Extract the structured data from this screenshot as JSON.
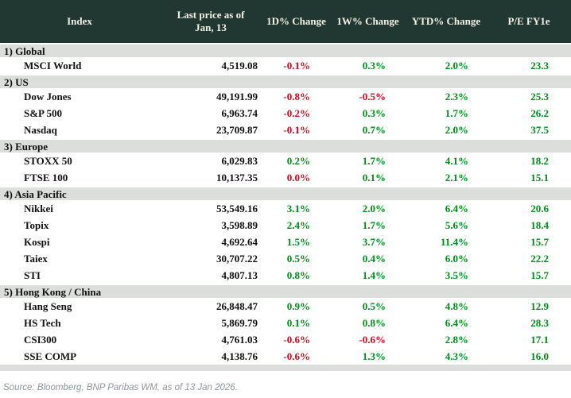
{
  "chart_data": {
    "type": "table",
    "columns": [
      "Index",
      "Last price as of Jan, 13",
      "1D% Change",
      "1W% Change",
      "YTD% Change",
      "P/E FY1e"
    ],
    "sections": [
      {
        "label": "1) Global",
        "rows": [
          {
            "name": "MSCI World",
            "price": "4,519.08",
            "d1": "-0.1%",
            "d1c": "down",
            "w1": "0.3%",
            "w1c": "up",
            "ytd": "2.0%",
            "ytdc": "up",
            "pe": "23.3"
          }
        ]
      },
      {
        "label": "2) US",
        "rows": [
          {
            "name": "Dow Jones",
            "price": "49,191.99",
            "d1": "-0.8%",
            "d1c": "down",
            "w1": "-0.5%",
            "w1c": "down",
            "ytd": "2.3%",
            "ytdc": "up",
            "pe": "25.3"
          },
          {
            "name": "S&P 500",
            "price": "6,963.74",
            "d1": "-0.2%",
            "d1c": "down",
            "w1": "0.3%",
            "w1c": "up",
            "ytd": "1.7%",
            "ytdc": "up",
            "pe": "26.2"
          },
          {
            "name": "Nasdaq",
            "price": "23,709.87",
            "d1": "-0.1%",
            "d1c": "down",
            "w1": "0.7%",
            "w1c": "up",
            "ytd": "2.0%",
            "ytdc": "up",
            "pe": "37.5"
          }
        ]
      },
      {
        "label": "3) Europe",
        "rows": [
          {
            "name": "STOXX 50",
            "price": "6,029.83",
            "d1": "0.2%",
            "d1c": "up",
            "w1": "1.7%",
            "w1c": "up",
            "ytd": "4.1%",
            "ytdc": "up",
            "pe": "18.2"
          },
          {
            "name": "FTSE 100",
            "price": "10,137.35",
            "d1": "0.0%",
            "d1c": "down",
            "w1": "0.1%",
            "w1c": "up",
            "ytd": "2.1%",
            "ytdc": "up",
            "pe": "15.1"
          }
        ]
      },
      {
        "label": "4) Asia Pacific",
        "rows": [
          {
            "name": "Nikkei",
            "price": "53,549.16",
            "d1": "3.1%",
            "d1c": "up",
            "w1": "2.0%",
            "w1c": "up",
            "ytd": "6.4%",
            "ytdc": "up",
            "pe": "20.6"
          },
          {
            "name": "Topix",
            "price": "3,598.89",
            "d1": "2.4%",
            "d1c": "up",
            "w1": "1.7%",
            "w1c": "up",
            "ytd": "5.6%",
            "ytdc": "up",
            "pe": "18.4"
          },
          {
            "name": "Kospi",
            "price": "4,692.64",
            "d1": "1.5%",
            "d1c": "up",
            "w1": "3.7%",
            "w1c": "up",
            "ytd": "11.4%",
            "ytdc": "up",
            "pe": "15.7"
          },
          {
            "name": "Taiex",
            "price": "30,707.22",
            "d1": "0.5%",
            "d1c": "up",
            "w1": "0.4%",
            "w1c": "up",
            "ytd": "6.0%",
            "ytdc": "up",
            "pe": "22.2"
          },
          {
            "name": "STI",
            "price": "4,807.13",
            "d1": "0.8%",
            "d1c": "up",
            "w1": "1.4%",
            "w1c": "up",
            "ytd": "3.5%",
            "ytdc": "up",
            "pe": "15.7"
          }
        ]
      },
      {
        "label": "5) Hong Kong / China",
        "rows": [
          {
            "name": "Hang Seng",
            "price": "26,848.47",
            "d1": "0.9%",
            "d1c": "up",
            "w1": "0.5%",
            "w1c": "up",
            "ytd": "4.8%",
            "ytdc": "up",
            "pe": "12.9"
          },
          {
            "name": "HS Tech",
            "price": "5,869.79",
            "d1": "0.1%",
            "d1c": "up",
            "w1": "0.8%",
            "w1c": "up",
            "ytd": "6.4%",
            "ytdc": "up",
            "pe": "28.3"
          },
          {
            "name": "CSI300",
            "price": "4,761.03",
            "d1": "-0.6%",
            "d1c": "down",
            "w1": "-0.6%",
            "w1c": "down",
            "ytd": "2.8%",
            "ytdc": "up",
            "pe": "17.1"
          },
          {
            "name": "SSE COMP",
            "price": "4,138.76",
            "d1": "-0.6%",
            "d1c": "down",
            "w1": "1.3%",
            "w1c": "up",
            "ytd": "4.3%",
            "ytdc": "up",
            "pe": "16.0"
          }
        ]
      }
    ],
    "layout": {
      "value_alignment": "right",
      "positive_color": "#008a1a",
      "negative_color": "#c80a20",
      "header_bg": "#203831",
      "section_bg": "#dbdeda"
    }
  },
  "footer": {
    "source_note": "Source: Bloomberg, BNP Paribas WM, as of 13 Jan 2026."
  }
}
